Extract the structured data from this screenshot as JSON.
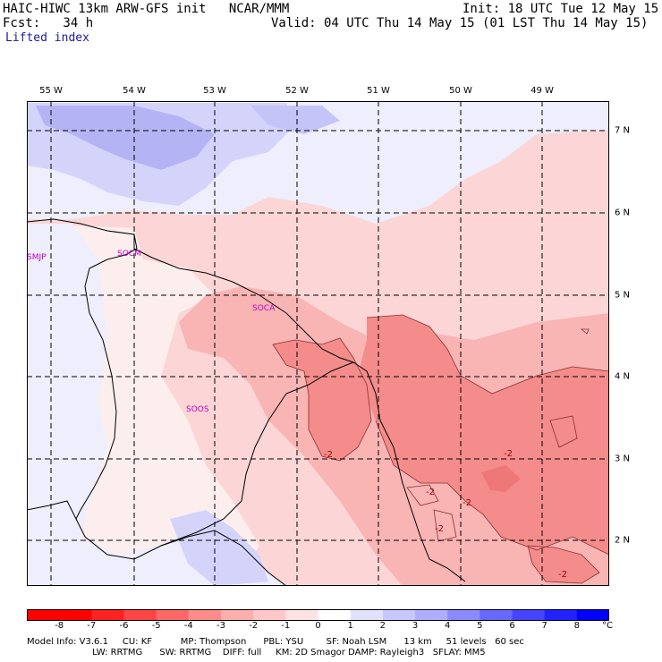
{
  "header": {
    "model_line": "HAIC-HIWC 13km ARW-GFS init   NCAR/MMM",
    "forecast_line": "Fcst:   34 h",
    "field": "Lifted index",
    "init": "Init: 18 UTC Tue 12 May 15",
    "valid": "Valid: 04 UTC Thu 14 May 15 (01 LST Thu 14 May 15)"
  },
  "map": {
    "longitude_labels": [
      "55 W",
      "54 W",
      "53 W",
      "52 W",
      "51 W",
      "50 W",
      "49 W"
    ],
    "latitude_labels": [
      "7 N",
      "6 N",
      "5 N",
      "4 N",
      "3 N",
      "2 N"
    ],
    "stations": [
      "SMJP",
      "SOCM",
      "SOCA",
      "SOOS"
    ],
    "contour_labels": [
      "-2",
      "-2",
      "-2",
      "-2",
      "-2",
      "-2"
    ],
    "colors": {
      "neg_strong": "#f48c8c",
      "neg_mid": "#f9b4b4",
      "neg_light": "#fcd6d6",
      "neutral": "#fdeeee",
      "pos_light": "#eeeefd",
      "pos_mid": "#d4d4fb",
      "pos_strong": "#b4b4f4"
    }
  },
  "colorbar": {
    "ticks": [
      "-8",
      "-7",
      "-6",
      "-5",
      "-4",
      "-3",
      "-2",
      "-1",
      "0",
      "1",
      "2",
      "3",
      "4",
      "5",
      "6",
      "7",
      "8"
    ],
    "unit": "°C",
    "colors": [
      "#ff0000",
      "#ff2222",
      "#ff4545",
      "#ff6868",
      "#ff8b8b",
      "#ffaeae",
      "#ffc8c8",
      "#ffe2e2",
      "#ffffff",
      "#e2e2ff",
      "#c8c8ff",
      "#aeaeff",
      "#8b8bff",
      "#6868ff",
      "#4545ff",
      "#2222ff",
      "#0000ff"
    ]
  },
  "footer": {
    "line1": "Model Info: V3.6.1     CU: KF          MP: Thompson      PBL: YSU        SF: Noah LSM      13 km     51 levels   60 sec",
    "line2": "                       LW: RRTMG      SW: RRTMG    DIFF: full     KM: 2D Smagor DAMP: Rayleigh3   SFLAY: MM5"
  }
}
